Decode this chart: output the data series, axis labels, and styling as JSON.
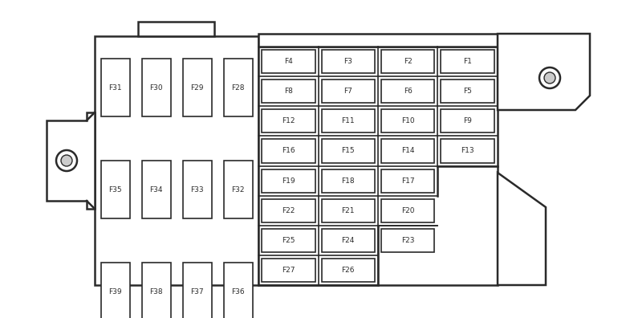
{
  "bg_color": "#ffffff",
  "line_color": "#2a2a2a",
  "fuse_fill": "#ffffff",
  "box_fill": "#ffffff",
  "left_fuses": [
    {
      "label": "F31",
      "col": 0,
      "row": 0
    },
    {
      "label": "F30",
      "col": 1,
      "row": 0
    },
    {
      "label": "F29",
      "col": 2,
      "row": 0
    },
    {
      "label": "F28",
      "col": 3,
      "row": 0
    },
    {
      "label": "F35",
      "col": 0,
      "row": 1
    },
    {
      "label": "F34",
      "col": 1,
      "row": 1
    },
    {
      "label": "F33",
      "col": 2,
      "row": 1
    },
    {
      "label": "F32",
      "col": 3,
      "row": 1
    },
    {
      "label": "F39",
      "col": 0,
      "row": 2
    },
    {
      "label": "F38",
      "col": 1,
      "row": 2
    },
    {
      "label": "F37",
      "col": 2,
      "row": 2
    },
    {
      "label": "F36",
      "col": 3,
      "row": 2
    }
  ],
  "right_fuses": [
    {
      "label": "F4",
      "col": 0,
      "row": 0
    },
    {
      "label": "F3",
      "col": 1,
      "row": 0
    },
    {
      "label": "F2",
      "col": 2,
      "row": 0
    },
    {
      "label": "F1",
      "col": 3,
      "row": 0
    },
    {
      "label": "F8",
      "col": 0,
      "row": 1
    },
    {
      "label": "F7",
      "col": 1,
      "row": 1
    },
    {
      "label": "F6",
      "col": 2,
      "row": 1
    },
    {
      "label": "F5",
      "col": 3,
      "row": 1
    },
    {
      "label": "F12",
      "col": 0,
      "row": 2
    },
    {
      "label": "F11",
      "col": 1,
      "row": 2
    },
    {
      "label": "F10",
      "col": 2,
      "row": 2
    },
    {
      "label": "F9",
      "col": 3,
      "row": 2
    },
    {
      "label": "F16",
      "col": 0,
      "row": 3
    },
    {
      "label": "F15",
      "col": 1,
      "row": 3
    },
    {
      "label": "F14",
      "col": 2,
      "row": 3
    },
    {
      "label": "F13",
      "col": 3,
      "row": 3
    },
    {
      "label": "F19",
      "col": 0,
      "row": 4
    },
    {
      "label": "F18",
      "col": 1,
      "row": 4
    },
    {
      "label": "F17",
      "col": 2,
      "row": 4
    },
    {
      "label": "F22",
      "col": 0,
      "row": 5
    },
    {
      "label": "F21",
      "col": 1,
      "row": 5
    },
    {
      "label": "F20",
      "col": 2,
      "row": 5
    },
    {
      "label": "F25",
      "col": 0,
      "row": 6
    },
    {
      "label": "F24",
      "col": 1,
      "row": 6
    },
    {
      "label": "F23",
      "col": 2,
      "row": 6
    },
    {
      "label": "F27",
      "col": 0,
      "row": 7
    },
    {
      "label": "F26",
      "col": 1,
      "row": 7
    }
  ]
}
